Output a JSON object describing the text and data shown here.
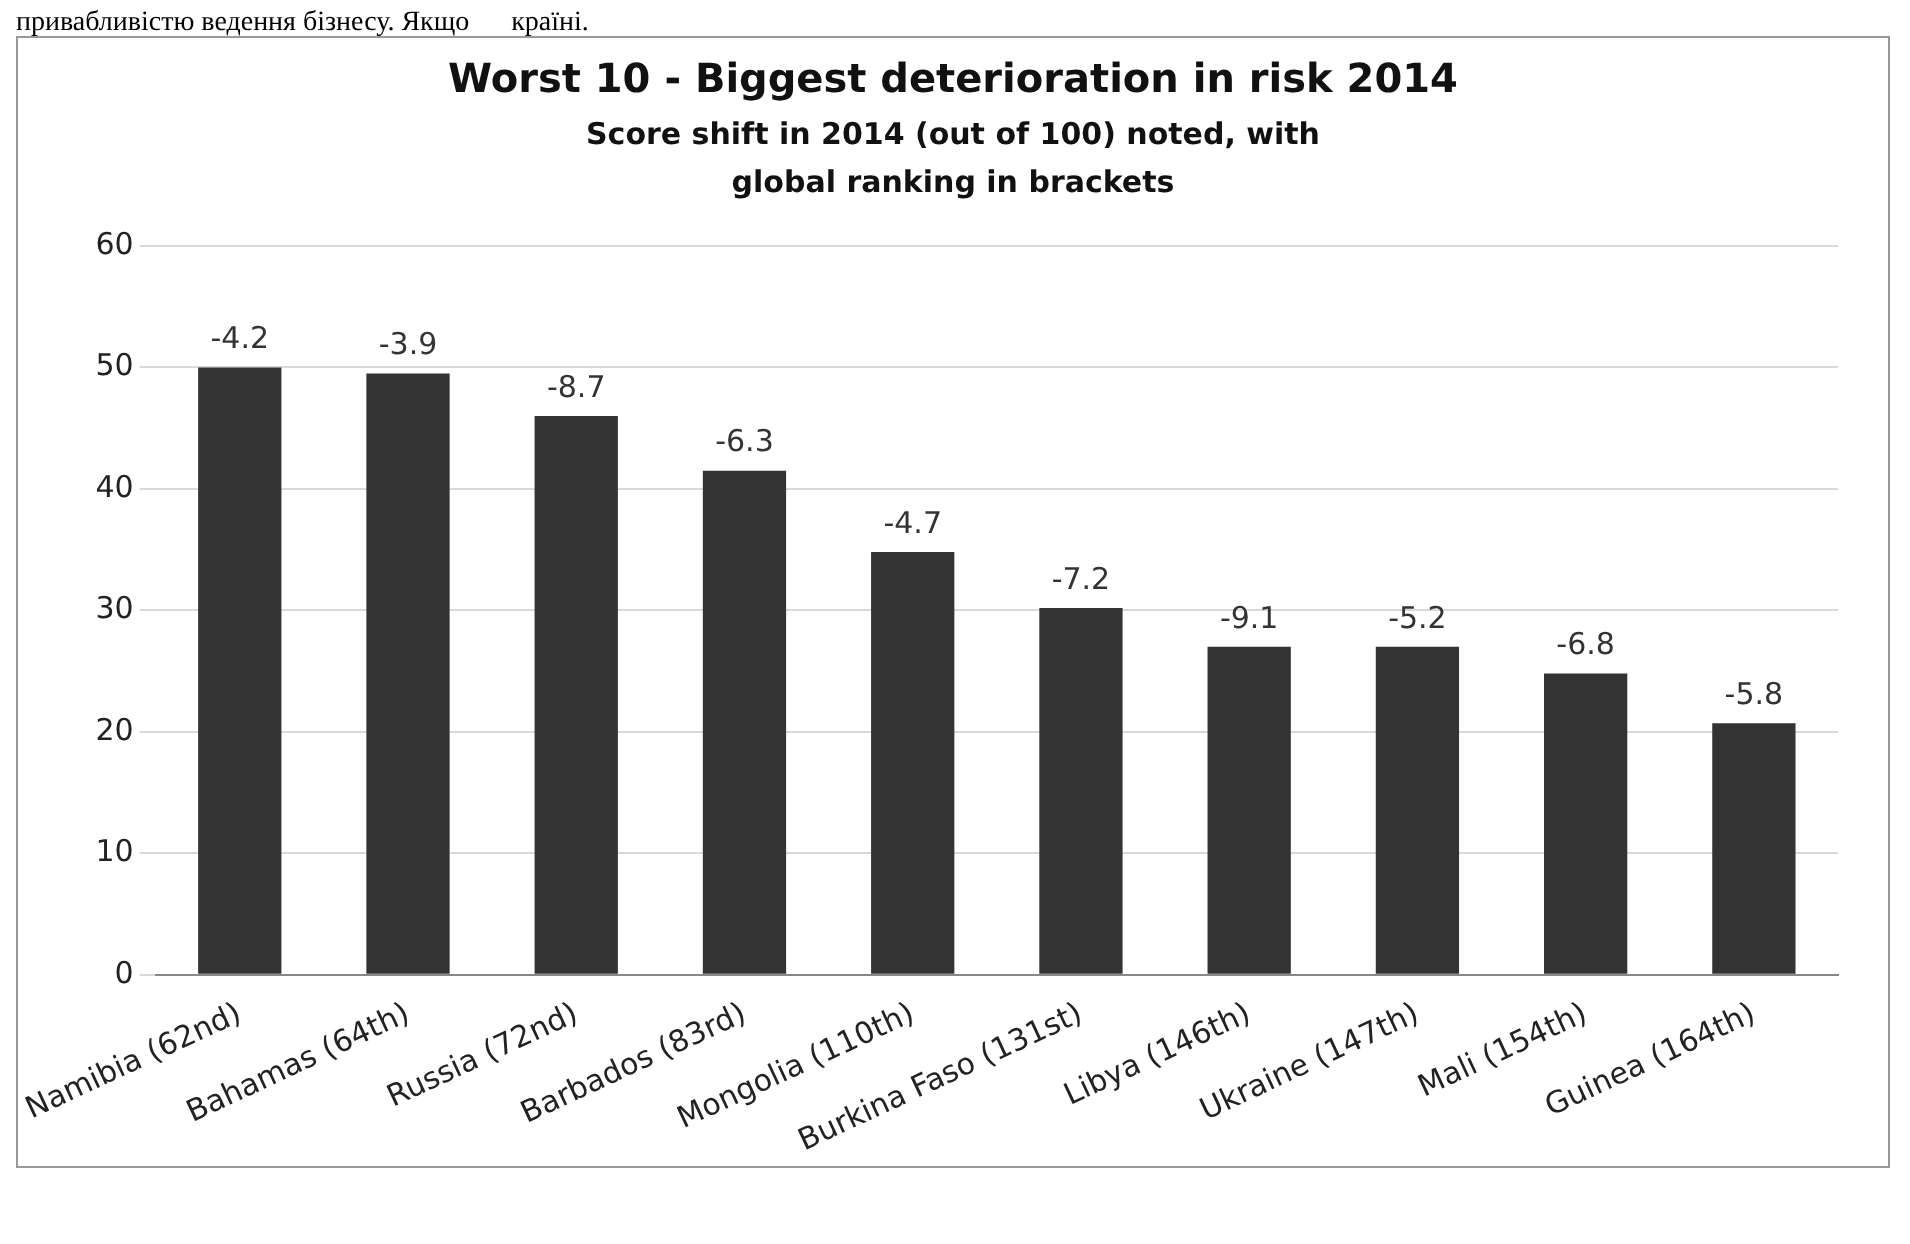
{
  "chart_data": {
    "type": "bar",
    "title": "Worst 10 - Biggest deterioration in risk 2014",
    "subtitle": "Score shift in 2014 (out of 100) noted, with global ranking in brackets",
    "annotations": [
      "привабливістю ведення бізнесу. Якщо      країні.",
      {
        "text": "-4.2",
        "x": "Namibia (62nd)",
        "y": 50
      },
      {
        "text": "-3.9",
        "x": "Bahamas (64th)",
        "y": 49.5
      },
      {
        "text": "-8.7",
        "x": "Russia (72nd)",
        "y": 46
      },
      {
        "text": "-6.3",
        "x": "Barbados (83rd)",
        "y": 41.5
      },
      {
        "text": "-4.7",
        "x": "Mongolia (110th)",
        "y": 34.8
      },
      {
        "text": "-7.2",
        "x": "Burkina Faso (131st)",
        "y": 30.2
      },
      {
        "text": "-9.1",
        "x": "Libya (146th)",
        "y": 27
      },
      {
        "text": "-5.2",
        "x": "Ukraine (147th)",
        "y": 27
      },
      {
        "text": "-6.8",
        "x": "Mali (154th)",
        "y": 24.8
      },
      {
        "text": "-5.8",
        "x": "Guinea (164th)",
        "y": 20.7
      }
    ],
    "categories": [
      "Namibia (62nd)",
      "Bahamas (64th)",
      "Russia (72nd)",
      "Barbados (83rd)",
      "Mongolia (110th)",
      "Burkina Faso (131st)",
      "Libya (146th)",
      "Ukraine (147th)",
      "Mali (154th)",
      "Guinea (164th)"
    ],
    "values": [
      50,
      49.5,
      46,
      41.5,
      34.8,
      30.2,
      27,
      27,
      24.8,
      20.7
    ],
    "color": "#333333",
    "ylim": [
      0,
      60
    ],
    "yticks": [
      0,
      10,
      20,
      30,
      40,
      50,
      60
    ],
    "grid": "y",
    "legend": false
  }
}
